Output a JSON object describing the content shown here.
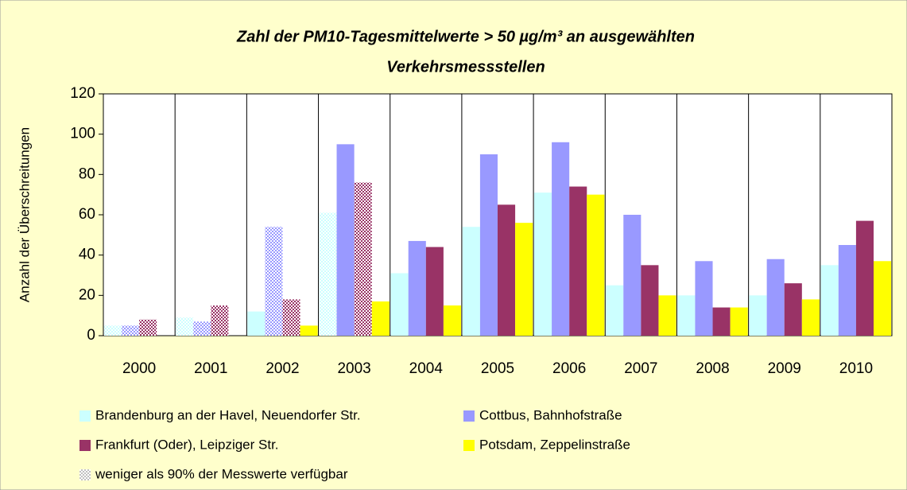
{
  "chart_data": {
    "type": "bar",
    "title": [
      "Zahl der PM10-Tagesmittelwerte > 50 µg/m³ an ausgewählten",
      "Verkehrsmessstellen"
    ],
    "y_label": "Anzahl der Überschreitungen",
    "categories": [
      "2000",
      "2001",
      "2002",
      "2003",
      "2004",
      "2005",
      "2006",
      "2007",
      "2008",
      "2009",
      "2010"
    ],
    "series": [
      {
        "name": "Brandenburg an der Havel, Neuendorfer Str.",
        "color": "#ccffff",
        "values": [
          5,
          9,
          12,
          61,
          31,
          54,
          71,
          25,
          20,
          20,
          35
        ],
        "hatched": [
          true,
          true,
          false,
          true,
          false,
          false,
          false,
          false,
          false,
          false,
          false
        ]
      },
      {
        "name": "Cottbus, Bahnhofstraße",
        "color": "#9999ff",
        "values": [
          5,
          7,
          54,
          95,
          47,
          90,
          96,
          60,
          37,
          38,
          45
        ],
        "hatched": [
          true,
          true,
          true,
          false,
          false,
          false,
          false,
          false,
          false,
          false,
          false
        ]
      },
      {
        "name": "Frankfurt (Oder), Leipziger Str.",
        "color": "#993366",
        "values": [
          8,
          15,
          18,
          76,
          44,
          65,
          74,
          35,
          14,
          26,
          57
        ],
        "hatched": [
          true,
          true,
          true,
          true,
          false,
          false,
          false,
          false,
          false,
          false,
          false
        ]
      },
      {
        "name": "Potsdam, Zeppelinstraße",
        "color": "#ffff00",
        "values": [
          null,
          null,
          5,
          17,
          15,
          56,
          70,
          20,
          14,
          18,
          37
        ],
        "hatched": [
          false,
          false,
          false,
          false,
          false,
          false,
          false,
          false,
          false,
          false,
          false
        ]
      }
    ],
    "hatch_legend": {
      "label": "weniger als 90% der Messwerte verfügbar",
      "color": "#c0c0c0"
    },
    "ylim": [
      0,
      120
    ],
    "yticks": [
      0,
      20,
      40,
      60,
      80,
      100,
      120
    ],
    "background": "#ffffcc",
    "plot_background": "#ffffff"
  }
}
